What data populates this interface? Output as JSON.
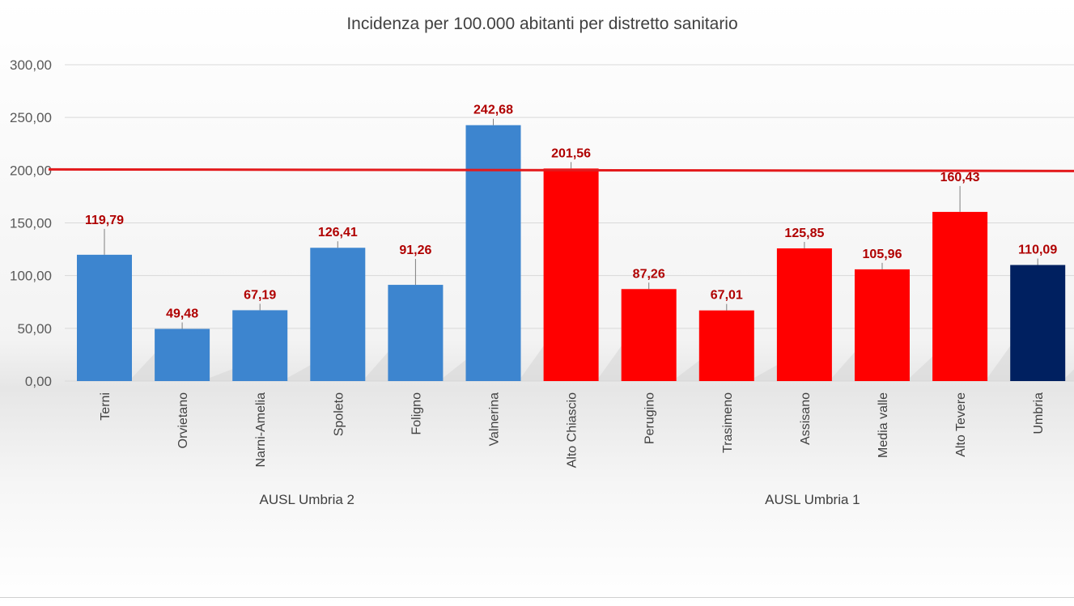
{
  "chart_data": {
    "type": "bar",
    "title": "Incidenza per 100.000 abitanti per distretto sanitario",
    "xlabel": "",
    "ylabel": "",
    "ylim": [
      0,
      300
    ],
    "yticks": [
      "0,00",
      "50,00",
      "100,00",
      "150,00",
      "200,00",
      "250,00",
      "300,00"
    ],
    "grid": true,
    "categories": [
      "Terni",
      "Orvietano",
      "Narni-Amelia",
      "Spoleto",
      "Foligno",
      "Valnerina",
      "Alto Chiascio",
      "Perugino",
      "Trasimeno",
      "Assisano",
      "Media valle",
      "Alto Tevere",
      "Umbria"
    ],
    "values": [
      119.79,
      49.48,
      67.19,
      126.41,
      91.26,
      242.68,
      201.56,
      87.26,
      67.01,
      125.85,
      105.96,
      160.43,
      110.09
    ],
    "value_labels": [
      "119,79",
      "49,48",
      "67,19",
      "126,41",
      "91,26",
      "242,68",
      "201,56",
      "87,26",
      "67,01",
      "125,85",
      "105,96",
      "160,43",
      "110,09"
    ],
    "bar_colors": [
      "#3d85cf",
      "#3d85cf",
      "#3d85cf",
      "#3d85cf",
      "#3d85cf",
      "#3d85cf",
      "#ff0000",
      "#ff0000",
      "#ff0000",
      "#ff0000",
      "#ff0000",
      "#ff0000",
      "#002060"
    ],
    "groups": [
      {
        "label": "AUSL Umbria 2",
        "start": 0,
        "end": 5
      },
      {
        "label": "AUSL Umbria 1",
        "start": 6,
        "end": 12
      }
    ],
    "reference_line": {
      "value": 200,
      "color": "#e31a1c"
    },
    "label_color": "#b00000"
  }
}
